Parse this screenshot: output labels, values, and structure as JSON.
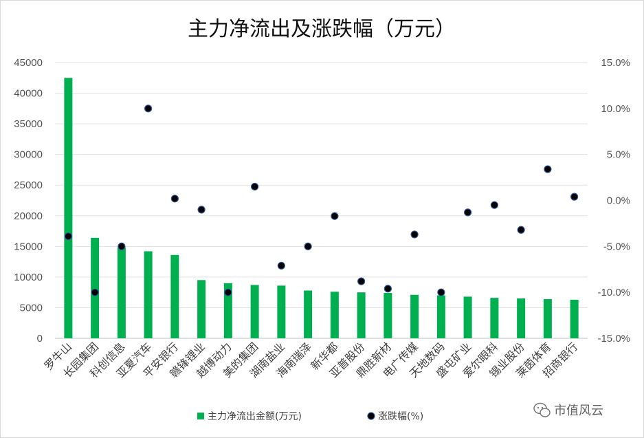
{
  "chart_data": {
    "type": "bar",
    "title": "主力净流出及涨跌幅（万元）",
    "categories": [
      "罗牛山",
      "长园集团",
      "科创信息",
      "亚夏汽车",
      "平安银行",
      "赣锋锂业",
      "越博动力",
      "美的集团",
      "湖南盐业",
      "海南瑞泽",
      "新华都",
      "亚普股份",
      "鼎胜新材",
      "电广传媒",
      "天地数码",
      "盛屯矿业",
      "爱尔眼科",
      "锡业股份",
      "莱茵体育",
      "招商银行"
    ],
    "series": [
      {
        "name": "主力净流出金额(万元)",
        "type": "bar",
        "axis": "left",
        "color": "#00b050",
        "values": [
          42500,
          16400,
          14800,
          14200,
          13600,
          9500,
          9000,
          8700,
          8600,
          7800,
          7600,
          7500,
          7400,
          7100,
          7000,
          6800,
          6600,
          6500,
          6400,
          6300
        ]
      },
      {
        "name": "涨跌幅(%)",
        "type": "scatter",
        "axis": "right",
        "color": "#000000",
        "values": [
          -3.9,
          -10.0,
          -5.0,
          10.0,
          0.2,
          -1.0,
          -10.0,
          1.5,
          -7.1,
          -5.0,
          -1.7,
          -8.8,
          -9.6,
          -3.7,
          -10.0,
          -1.3,
          -0.5,
          -3.2,
          3.4,
          0.4
        ]
      }
    ],
    "y_left": {
      "min": 0,
      "max": 45000,
      "ticks": [
        "0",
        "5000",
        "10000",
        "15000",
        "20000",
        "25000",
        "30000",
        "35000",
        "40000",
        "45000"
      ]
    },
    "y_right": {
      "min": -15,
      "max": 15,
      "ticks": [
        "-15.0%",
        "-10.0%",
        "-5.0%",
        "0.0%",
        "5.0%",
        "10.0%",
        "15.0%"
      ]
    },
    "grid": true,
    "legend_position": "bottom"
  },
  "watermark": {
    "text": "市值风云",
    "icon": "wechat-icon"
  }
}
